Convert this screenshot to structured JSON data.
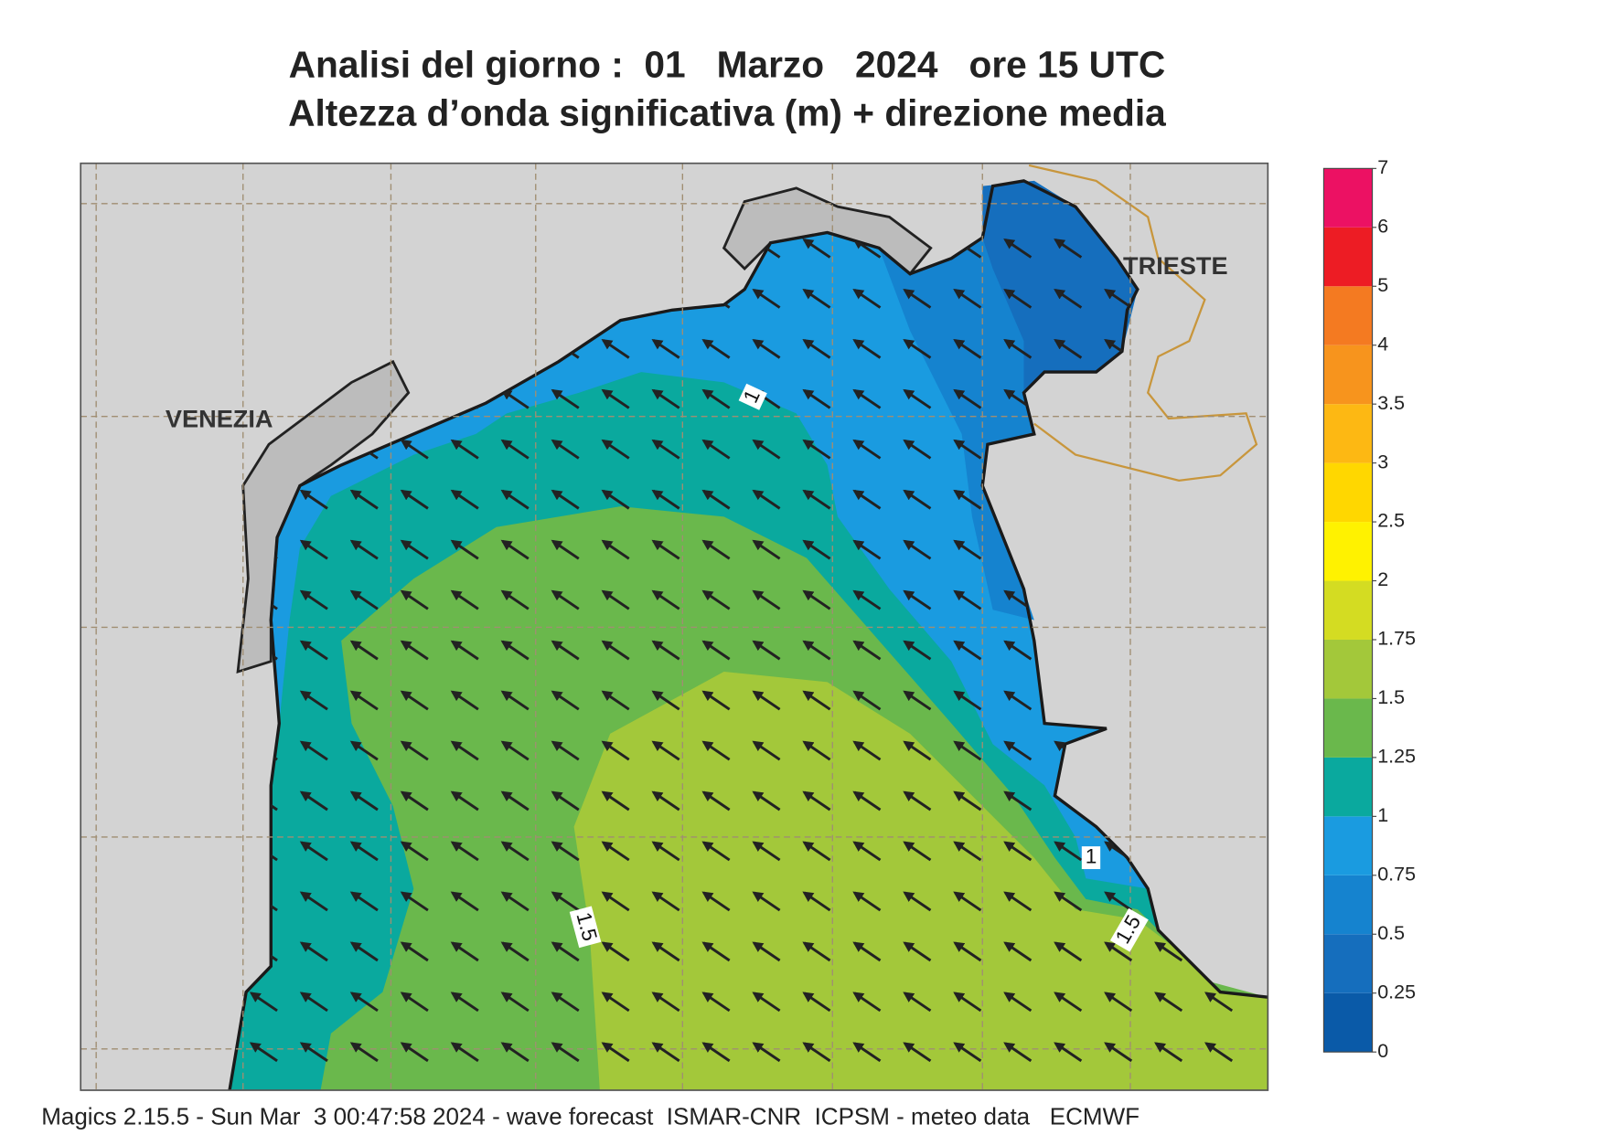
{
  "header": {
    "title": "Analisi del giorno :  01   Marzo   2024   ore 15 UTC",
    "subtitle": "Altezza d’onda significativa (m) + direzione media"
  },
  "map": {
    "cities": [
      "VENEZIA",
      "TRIESTE"
    ],
    "contour_labels": [
      "1",
      "1",
      "1.5",
      "1.5"
    ]
  },
  "colorbar": {
    "ticks": [
      0,
      0.25,
      0.5,
      0.75,
      1,
      1.25,
      1.5,
      1.75,
      2,
      2.5,
      3,
      3.5,
      4,
      5,
      6,
      7
    ],
    "colors": [
      "#0a5aa8",
      "#156ebd",
      "#1583cf",
      "#1a9be0",
      "#0aa99e",
      "#6ab84c",
      "#a3c83a",
      "#d4dc22",
      "#fff200",
      "#ffd700",
      "#fdb813",
      "#f7941d",
      "#f47a21",
      "#ed1c24",
      "#ec1163"
    ]
  },
  "footer": "Magics 2.15.5 - Sun Mar  3 00:47:58 2024 - wave forecast  ISMAR-CNR  ICPSM - meteo data   ECMWF"
}
